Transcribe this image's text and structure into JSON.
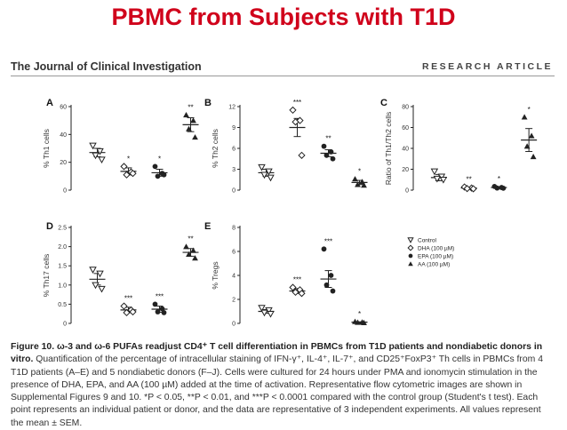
{
  "slide_title": "PBMC from Subjects with T1D",
  "header": {
    "journal": "The Journal of Clinical Investigation",
    "article_type": "RESEARCH ARTICLE"
  },
  "legend": [
    {
      "name": "Control",
      "marker": "triangle-down",
      "color": "#222222"
    },
    {
      "name": "DHA (100 µM)",
      "marker": "diamond",
      "color": "#222222"
    },
    {
      "name": "EPA (100 µM)",
      "marker": "circle",
      "color": "#222222"
    },
    {
      "name": "AA (100 µM)",
      "marker": "triangle-up",
      "color": "#222222"
    }
  ],
  "chart_data": [
    {
      "type": "scatter",
      "panel": "A",
      "ylabel": "% Th1 cells",
      "ylim": [
        0,
        60
      ],
      "yticks": [
        0,
        20,
        40,
        60
      ],
      "tick_labels": [
        "0",
        "20",
        "40",
        "60"
      ],
      "groups": [
        {
          "name": "Control",
          "mean": 27,
          "sem": 3,
          "points": [
            32,
            28,
            25,
            22
          ],
          "sig": ""
        },
        {
          "name": "DHA (100 µM)",
          "mean": 13.5,
          "sem": 2.5,
          "points": [
            17,
            13,
            11,
            12
          ],
          "sig": "*"
        },
        {
          "name": "EPA (100 µM)",
          "mean": 12.5,
          "sem": 2.5,
          "points": [
            17,
            12,
            10,
            11
          ],
          "sig": "*"
        },
        {
          "name": "AA (100 µM)",
          "mean": 47,
          "sem": 5,
          "points": [
            54,
            50,
            44,
            38
          ],
          "sig": "**"
        }
      ]
    },
    {
      "type": "scatter",
      "panel": "B",
      "ylabel": "% Th2 cells",
      "ylim": [
        0,
        12
      ],
      "yticks": [
        0,
        3,
        6,
        9,
        12
      ],
      "tick_labels": [
        "0",
        "3",
        "6",
        "9",
        "12"
      ],
      "groups": [
        {
          "name": "Control",
          "mean": 2.5,
          "sem": 0.5,
          "points": [
            3.3,
            2.7,
            2.2,
            1.8
          ],
          "sig": ""
        },
        {
          "name": "DHA (100 µM)",
          "mean": 9,
          "sem": 1.3,
          "points": [
            11.5,
            10,
            9.8,
            5
          ],
          "sig": "***"
        },
        {
          "name": "EPA (100 µM)",
          "mean": 5.3,
          "sem": 0.5,
          "points": [
            6.3,
            5.5,
            5,
            4.5
          ],
          "sig": "**"
        },
        {
          "name": "AA (100 µM)",
          "mean": 1.1,
          "sem": 0.3,
          "points": [
            1.6,
            1.2,
            0.8,
            0.7
          ],
          "sig": "*"
        }
      ]
    },
    {
      "type": "scatter",
      "panel": "C",
      "ylabel": "Ratio of Th1/Th2 cells",
      "ylim": [
        0,
        80
      ],
      "yticks": [
        0,
        20,
        40,
        60,
        80
      ],
      "tick_labels": [
        "0",
        "20",
        "40",
        "60",
        "80"
      ],
      "groups": [
        {
          "name": "Control",
          "mean": 12,
          "sem": 3,
          "points": [
            18,
            13,
            11,
            10
          ],
          "sig": ""
        },
        {
          "name": "DHA (100 µM)",
          "mean": 2,
          "sem": 0.6,
          "points": [
            3,
            2,
            1.5,
            1.3
          ],
          "sig": "**"
        },
        {
          "name": "EPA (100 µM)",
          "mean": 2.5,
          "sem": 0.6,
          "points": [
            3.5,
            2.5,
            2,
            1.8
          ],
          "sig": "*"
        },
        {
          "name": "AA (100 µM)",
          "mean": 48,
          "sem": 11,
          "points": [
            70,
            52,
            42,
            32
          ],
          "sig": "*"
        }
      ]
    },
    {
      "type": "scatter",
      "panel": "D",
      "ylabel": "% Th17 cells",
      "ylim": [
        0,
        2.5
      ],
      "yticks": [
        0,
        0.5,
        1,
        1.5,
        2,
        2.5
      ],
      "tick_labels": [
        "0",
        "0.5",
        "1.0",
        "1.5",
        "2.0",
        "2.5"
      ],
      "groups": [
        {
          "name": "Control",
          "mean": 1.15,
          "sem": 0.15,
          "points": [
            1.4,
            1.3,
            1.0,
            0.9
          ],
          "sig": ""
        },
        {
          "name": "DHA (100 µM)",
          "mean": 0.35,
          "sem": 0.07,
          "points": [
            0.45,
            0.35,
            0.28,
            0.3
          ],
          "sig": "***"
        },
        {
          "name": "EPA (100 µM)",
          "mean": 0.37,
          "sem": 0.08,
          "points": [
            0.5,
            0.38,
            0.3,
            0.28
          ],
          "sig": "***"
        },
        {
          "name": "AA (100 µM)",
          "mean": 1.85,
          "sem": 0.1,
          "points": [
            2.0,
            1.9,
            1.8,
            1.7
          ],
          "sig": "**"
        }
      ]
    },
    {
      "type": "scatter",
      "panel": "E",
      "ylabel": "% Tregs",
      "ylim": [
        0,
        8
      ],
      "yticks": [
        0,
        2,
        4,
        6,
        8
      ],
      "tick_labels": [
        "0",
        "2",
        "4",
        "6",
        "8"
      ],
      "groups": [
        {
          "name": "Control",
          "mean": 1.0,
          "sem": 0.15,
          "points": [
            1.3,
            1.1,
            0.9,
            0.8
          ],
          "sig": ""
        },
        {
          "name": "DHA (100 µM)",
          "mean": 2.7,
          "sem": 0.2,
          "points": [
            3.0,
            2.8,
            2.6,
            2.5
          ],
          "sig": "***"
        },
        {
          "name": "EPA (100 µM)",
          "mean": 3.7,
          "sem": 0.7,
          "points": [
            6.2,
            4.0,
            3.2,
            2.7
          ],
          "sig": "***"
        },
        {
          "name": "AA (100 µM)",
          "mean": 0.1,
          "sem": 0.03,
          "points": [
            0.15,
            0.1,
            0.08,
            0.05
          ],
          "sig": "*"
        }
      ]
    }
  ],
  "caption": {
    "label": "Figure 10. ω-3 and ω-6 PUFAs readjust CD4⁺ T cell differentiation in PBMCs from T1D patients and nondiabetic donors in vitro.",
    "body": " Quantification of the percentage of intracellular staining of IFN-γ⁺, IL-4⁺, IL-7⁺, and CD25⁺FoxP3⁺ Th cells in PBMCs from 4 T1D patients (A–E) and 5 nondiabetic donors (F–J). Cells were cultured for 24 hours under PMA and ionomycin stimulation in the presence of DHA, EPA, and AA (100 µM) added at the time of activation. Representative flow cytometric images are shown in Supplemental Figures 9 and 10. *P < 0.05, **P < 0.01, and ***P < 0.0001 compared with the control group (Student's t test). Each point represents an individual patient or donor, and the data are representative of 3 independent experiments. All values represent the mean ± SEM."
  }
}
